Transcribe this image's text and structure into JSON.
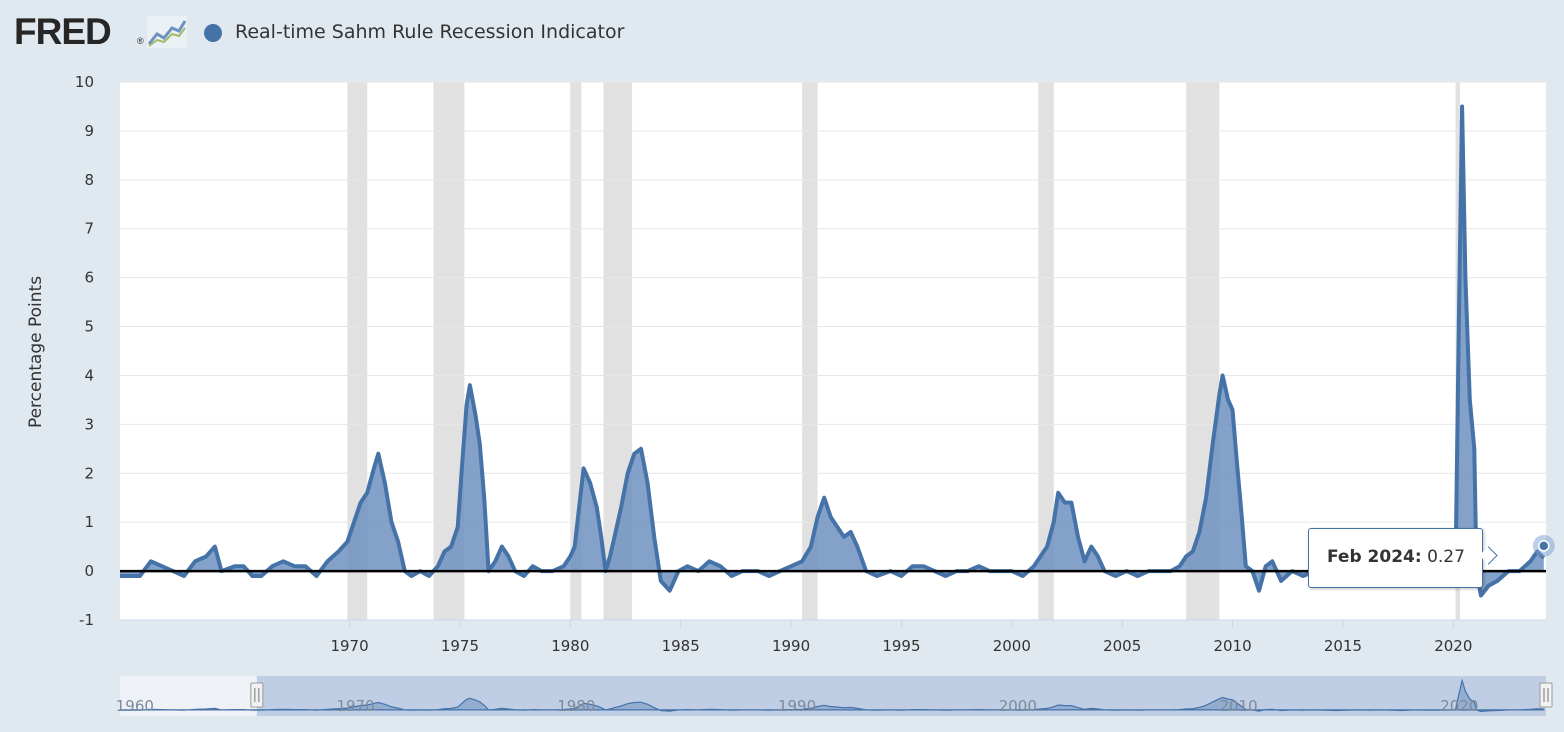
{
  "header": {
    "logo_text": "FRED",
    "logo_mark": "®",
    "logo_icon": "chart-line-icon"
  },
  "colors": {
    "series": "#4572a7",
    "series_fill": "#6e92c0",
    "recession": "#e1e1e1",
    "background": "#e1e9f0",
    "plot": "#ffffff",
    "zero_line": "#000000",
    "navigator_fill": "#b3c4e0"
  },
  "tooltip": {
    "date": "Feb 2024:",
    "value": "0.27"
  },
  "chart_data": {
    "type": "area",
    "title": "Real-time Sahm Rule Recession Indicator",
    "ylabel": "Percentage Points",
    "xlabel": "",
    "xlim": [
      1959.6,
      2024.2
    ],
    "ylim": [
      -1,
      10
    ],
    "yticks": [
      -1,
      0,
      1,
      2,
      3,
      4,
      5,
      6,
      7,
      8,
      9,
      10
    ],
    "ytick_labels": [
      "-1",
      "0",
      "1",
      "2",
      "3",
      "4",
      "5",
      "6",
      "7",
      "8",
      "9",
      "10"
    ],
    "xticks": [
      1970,
      1975,
      1980,
      1985,
      1990,
      1995,
      2000,
      2005,
      2010,
      2015,
      2020
    ],
    "xtick_labels": [
      "1970",
      "1975",
      "1980",
      "1985",
      "1990",
      "1995",
      "2000",
      "2005",
      "2010",
      "2015",
      "2020"
    ],
    "recessions": [
      [
        1969.9,
        1970.8
      ],
      [
        1973.8,
        1975.2
      ],
      [
        1980.0,
        1980.5
      ],
      [
        1981.5,
        1982.8
      ],
      [
        1990.5,
        1991.2
      ],
      [
        2001.2,
        2001.9
      ],
      [
        2007.9,
        2009.4
      ],
      [
        2020.1,
        2020.3
      ]
    ],
    "navigator": {
      "xticks": [
        1960,
        1970,
        1980,
        1990,
        2000,
        2010,
        2020
      ],
      "xtick_labels": [
        "1960",
        "1970",
        "1980",
        "1990",
        "2000",
        "2010",
        "2020"
      ]
    },
    "series": [
      {
        "name": "Real-time Sahm Rule Recession Indicator",
        "points": [
          [
            1959.6,
            -0.1
          ],
          [
            1960.5,
            -0.1
          ],
          [
            1961.0,
            0.2
          ],
          [
            1961.5,
            0.1
          ],
          [
            1962.0,
            0.0
          ],
          [
            1962.5,
            -0.1
          ],
          [
            1963.0,
            0.2
          ],
          [
            1963.5,
            0.3
          ],
          [
            1963.9,
            0.5
          ],
          [
            1964.2,
            0.0
          ],
          [
            1964.8,
            0.1
          ],
          [
            1965.2,
            0.1
          ],
          [
            1965.6,
            -0.1
          ],
          [
            1966.0,
            -0.1
          ],
          [
            1966.5,
            0.1
          ],
          [
            1967.0,
            0.2
          ],
          [
            1967.5,
            0.1
          ],
          [
            1968.0,
            0.1
          ],
          [
            1968.5,
            -0.1
          ],
          [
            1969.0,
            0.2
          ],
          [
            1969.5,
            0.4
          ],
          [
            1969.9,
            0.6
          ],
          [
            1970.2,
            1.0
          ],
          [
            1970.5,
            1.4
          ],
          [
            1970.8,
            1.6
          ],
          [
            1971.1,
            2.1
          ],
          [
            1971.3,
            2.4
          ],
          [
            1971.6,
            1.8
          ],
          [
            1971.9,
            1.0
          ],
          [
            1972.2,
            0.6
          ],
          [
            1972.5,
            0.0
          ],
          [
            1972.8,
            -0.1
          ],
          [
            1973.2,
            0.0
          ],
          [
            1973.6,
            -0.1
          ],
          [
            1974.0,
            0.1
          ],
          [
            1974.3,
            0.4
          ],
          [
            1974.6,
            0.5
          ],
          [
            1974.9,
            0.9
          ],
          [
            1975.1,
            2.2
          ],
          [
            1975.3,
            3.4
          ],
          [
            1975.45,
            3.8
          ],
          [
            1975.7,
            3.2
          ],
          [
            1975.9,
            2.6
          ],
          [
            1976.1,
            1.5
          ],
          [
            1976.3,
            0.0
          ],
          [
            1976.6,
            0.2
          ],
          [
            1976.9,
            0.5
          ],
          [
            1977.2,
            0.3
          ],
          [
            1977.5,
            0.0
          ],
          [
            1977.9,
            -0.1
          ],
          [
            1978.3,
            0.1
          ],
          [
            1978.7,
            0.0
          ],
          [
            1979.2,
            0.0
          ],
          [
            1979.7,
            0.1
          ],
          [
            1980.0,
            0.3
          ],
          [
            1980.2,
            0.5
          ],
          [
            1980.4,
            1.3
          ],
          [
            1980.6,
            2.1
          ],
          [
            1980.9,
            1.8
          ],
          [
            1981.2,
            1.3
          ],
          [
            1981.4,
            0.7
          ],
          [
            1981.6,
            0.0
          ],
          [
            1981.8,
            0.3
          ],
          [
            1982.0,
            0.7
          ],
          [
            1982.3,
            1.3
          ],
          [
            1982.6,
            2.0
          ],
          [
            1982.9,
            2.4
          ],
          [
            1983.2,
            2.5
          ],
          [
            1983.5,
            1.8
          ],
          [
            1983.8,
            0.7
          ],
          [
            1984.1,
            -0.2
          ],
          [
            1984.5,
            -0.4
          ],
          [
            1984.9,
            0.0
          ],
          [
            1985.3,
            0.1
          ],
          [
            1985.8,
            0.0
          ],
          [
            1986.3,
            0.2
          ],
          [
            1986.8,
            0.1
          ],
          [
            1987.3,
            -0.1
          ],
          [
            1987.8,
            0.0
          ],
          [
            1988.5,
            0.0
          ],
          [
            1989.0,
            -0.1
          ],
          [
            1989.5,
            0.0
          ],
          [
            1990.0,
            0.1
          ],
          [
            1990.5,
            0.2
          ],
          [
            1990.9,
            0.5
          ],
          [
            1991.2,
            1.1
          ],
          [
            1991.5,
            1.5
          ],
          [
            1991.8,
            1.1
          ],
          [
            1992.1,
            0.9
          ],
          [
            1992.4,
            0.7
          ],
          [
            1992.7,
            0.8
          ],
          [
            1993.0,
            0.5
          ],
          [
            1993.4,
            0.0
          ],
          [
            1993.9,
            -0.1
          ],
          [
            1994.5,
            0.0
          ],
          [
            1995.0,
            -0.1
          ],
          [
            1995.5,
            0.1
          ],
          [
            1996.0,
            0.1
          ],
          [
            1996.5,
            0.0
          ],
          [
            1997.0,
            -0.1
          ],
          [
            1997.5,
            0.0
          ],
          [
            1998.0,
            0.0
          ],
          [
            1998.5,
            0.1
          ],
          [
            1999.0,
            0.0
          ],
          [
            1999.5,
            0.0
          ],
          [
            2000.0,
            0.0
          ],
          [
            2000.5,
            -0.1
          ],
          [
            2001.0,
            0.1
          ],
          [
            2001.3,
            0.3
          ],
          [
            2001.6,
            0.5
          ],
          [
            2001.9,
            1.0
          ],
          [
            2002.1,
            1.6
          ],
          [
            2002.4,
            1.4
          ],
          [
            2002.7,
            1.4
          ],
          [
            2003.0,
            0.7
          ],
          [
            2003.3,
            0.2
          ],
          [
            2003.6,
            0.5
          ],
          [
            2003.9,
            0.3
          ],
          [
            2004.2,
            0.0
          ],
          [
            2004.7,
            -0.1
          ],
          [
            2005.2,
            0.0
          ],
          [
            2005.7,
            -0.1
          ],
          [
            2006.2,
            0.0
          ],
          [
            2006.7,
            0.0
          ],
          [
            2007.2,
            0.0
          ],
          [
            2007.6,
            0.1
          ],
          [
            2007.9,
            0.3
          ],
          [
            2008.2,
            0.4
          ],
          [
            2008.5,
            0.8
          ],
          [
            2008.8,
            1.5
          ],
          [
            2009.1,
            2.6
          ],
          [
            2009.4,
            3.6
          ],
          [
            2009.55,
            4.0
          ],
          [
            2009.8,
            3.5
          ],
          [
            2010.0,
            3.3
          ],
          [
            2010.2,
            2.2
          ],
          [
            2010.4,
            1.2
          ],
          [
            2010.6,
            0.1
          ],
          [
            2010.9,
            0.0
          ],
          [
            2011.2,
            -0.4
          ],
          [
            2011.5,
            0.1
          ],
          [
            2011.8,
            0.2
          ],
          [
            2012.2,
            -0.2
          ],
          [
            2012.7,
            0.0
          ],
          [
            2013.2,
            -0.1
          ],
          [
            2013.7,
            0.0
          ],
          [
            2014.2,
            -0.1
          ],
          [
            2014.7,
            -0.2
          ],
          [
            2015.2,
            -0.1
          ],
          [
            2015.7,
            0.0
          ],
          [
            2016.2,
            -0.1
          ],
          [
            2016.7,
            0.0
          ],
          [
            2017.2,
            -0.1
          ],
          [
            2017.7,
            -0.2
          ],
          [
            2018.2,
            0.0
          ],
          [
            2018.7,
            -0.1
          ],
          [
            2019.2,
            -0.1
          ],
          [
            2019.7,
            0.0
          ],
          [
            2020.1,
            0.0
          ],
          [
            2020.25,
            5.0
          ],
          [
            2020.4,
            9.5
          ],
          [
            2020.55,
            6.0
          ],
          [
            2020.75,
            3.5
          ],
          [
            2020.95,
            2.5
          ],
          [
            2021.05,
            0.0
          ],
          [
            2021.25,
            -0.5
          ],
          [
            2021.6,
            -0.3
          ],
          [
            2022.0,
            -0.2
          ],
          [
            2022.5,
            0.0
          ],
          [
            2023.0,
            0.0
          ],
          [
            2023.5,
            0.2
          ],
          [
            2023.8,
            0.4
          ],
          [
            2024.1,
            0.27
          ]
        ]
      }
    ]
  }
}
